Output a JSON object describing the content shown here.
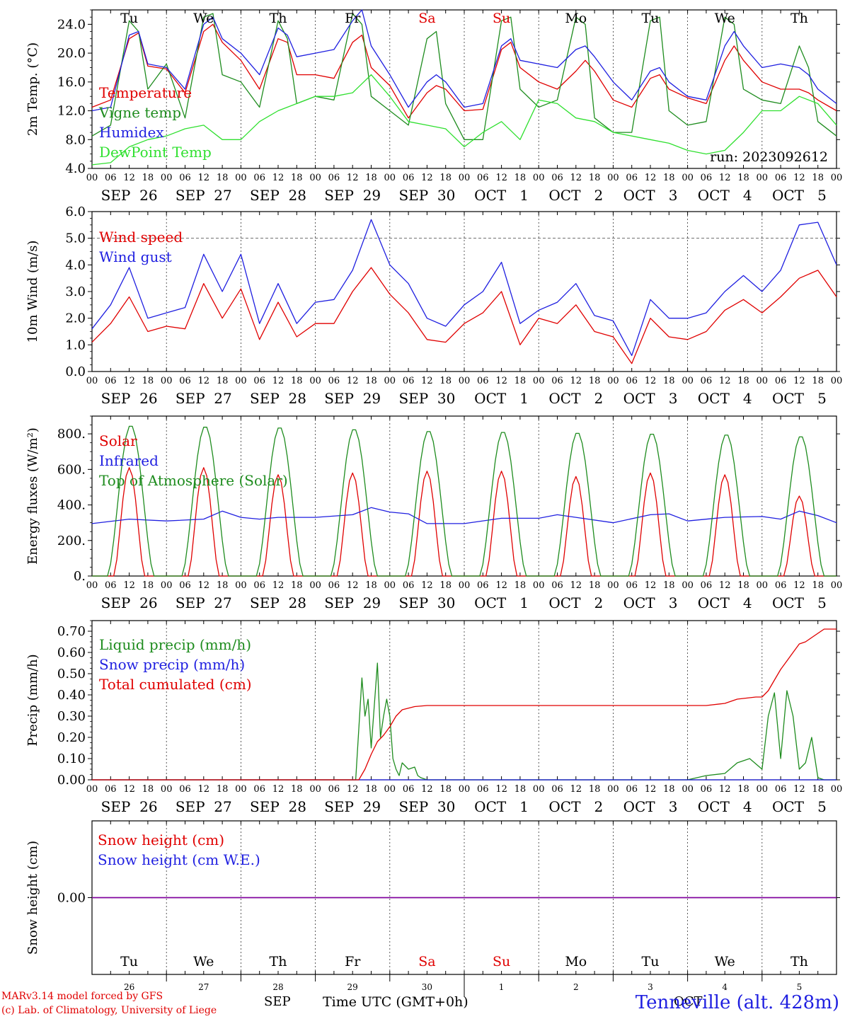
{
  "colors": {
    "red": "#e00000",
    "green": "#1e8c1e",
    "blue": "#1f1fe0",
    "lightgreen": "#30e030",
    "purple": "#8000a0",
    "axis": "#000000"
  },
  "hour_ticks": [
    "00",
    "06",
    "12",
    "18"
  ],
  "hour_end": "00",
  "dates": [
    "SEP  26",
    "SEP  27",
    "SEP  28",
    "SEP  29",
    "SEP  30",
    "OCT   1",
    "OCT   2",
    "OCT   3",
    "OCT   4",
    "OCT   5"
  ],
  "weekdays": [
    {
      "label": "Tu",
      "weekend": false
    },
    {
      "label": "We",
      "weekend": false
    },
    {
      "label": "Th",
      "weekend": false
    },
    {
      "label": "Fr",
      "weekend": false
    },
    {
      "label": "Sa",
      "weekend": true
    },
    {
      "label": "Su",
      "weekend": true
    },
    {
      "label": "Mo",
      "weekend": false
    },
    {
      "label": "Tu",
      "weekend": false
    },
    {
      "label": "We",
      "weekend": false
    },
    {
      "label": "Th",
      "weekend": false
    }
  ],
  "day_numbers": [
    "26",
    "27",
    "28",
    "29",
    "30",
    "1",
    "2",
    "3",
    "4",
    "5"
  ],
  "footer": {
    "credit_line1": "MARv3.14 model forced by GFS",
    "credit_line2": "(c) Lab. of Climatology, University of Liege",
    "month_left": "SEP",
    "month_right": "OCT",
    "xaxis_title": "Time UTC (GMT+0h)",
    "station": "Tenneville (alt. 428m)"
  },
  "chart_data": [
    {
      "type": "line",
      "ylabel": "2m Temp. (°C)",
      "ylim": [
        4,
        26
      ],
      "yticks": [
        "4.0",
        "8.0",
        "12.0",
        "16.0",
        "20.0",
        "24.0"
      ],
      "ytick_values": [
        4,
        8,
        12,
        16,
        20,
        24
      ],
      "annotation": "run: 2023092612",
      "x_unit": "hours since SEP 26 00 UTC",
      "series": [
        {
          "name": "Temperature",
          "color": "red",
          "x": [
            0,
            6,
            12,
            15,
            18,
            24,
            30,
            36,
            39,
            42,
            48,
            54,
            60,
            63,
            66,
            72,
            78,
            84,
            87,
            90,
            96,
            102,
            108,
            111,
            114,
            120,
            126,
            132,
            135,
            138,
            144,
            150,
            156,
            159,
            162,
            168,
            174,
            180,
            183,
            186,
            192,
            198,
            204,
            207,
            210,
            216,
            222,
            228,
            231,
            234,
            240
          ],
          "y": [
            12.5,
            13.5,
            22.0,
            22.8,
            18.2,
            17.8,
            14.5,
            23.0,
            24.0,
            21.5,
            19.0,
            15.0,
            22.0,
            21.5,
            17.0,
            17.0,
            16.5,
            21.5,
            22.5,
            18.0,
            15.5,
            11.0,
            14.5,
            15.5,
            15.0,
            12.0,
            12.2,
            20.5,
            21.5,
            18.0,
            16.0,
            15.0,
            17.5,
            19.0,
            17.5,
            13.5,
            12.5,
            16.5,
            17.0,
            15.0,
            13.8,
            13.0,
            19.0,
            21.0,
            19.0,
            16.0,
            15.0,
            15.0,
            14.5,
            13.5,
            12.0
          ]
        },
        {
          "name": "Vigne temp",
          "color": "green",
          "x": [
            0,
            6,
            12,
            15,
            18,
            24,
            30,
            36,
            39,
            42,
            48,
            54,
            60,
            63,
            66,
            72,
            78,
            84,
            87,
            90,
            96,
            102,
            108,
            111,
            114,
            120,
            126,
            132,
            135,
            138,
            144,
            150,
            156,
            159,
            162,
            168,
            174,
            180,
            183,
            186,
            192,
            198,
            204,
            207,
            210,
            216,
            222,
            228,
            231,
            234,
            240
          ],
          "y": [
            8.5,
            10.0,
            24.5,
            23.0,
            15.0,
            18.5,
            11.0,
            25.0,
            25.5,
            17.0,
            16.0,
            12.5,
            24.5,
            22.0,
            13.0,
            14.0,
            13.5,
            25.5,
            24.0,
            14.0,
            12.0,
            10.0,
            22.0,
            23.0,
            13.0,
            8.0,
            8.0,
            24.5,
            25.0,
            15.0,
            12.5,
            13.5,
            25.0,
            24.0,
            11.0,
            9.0,
            9.0,
            24.5,
            25.0,
            12.0,
            10.0,
            10.5,
            25.0,
            24.0,
            15.0,
            13.5,
            13.0,
            21.0,
            18.0,
            10.5,
            8.5
          ]
        },
        {
          "name": "Humidex",
          "color": "blue",
          "x": [
            0,
            6,
            12,
            15,
            18,
            24,
            30,
            36,
            39,
            42,
            48,
            54,
            60,
            63,
            66,
            72,
            78,
            84,
            87,
            90,
            96,
            102,
            108,
            111,
            114,
            120,
            126,
            132,
            135,
            138,
            144,
            150,
            156,
            159,
            162,
            168,
            174,
            180,
            183,
            186,
            192,
            198,
            204,
            207,
            210,
            216,
            222,
            228,
            231,
            234,
            240
          ],
          "y": [
            12.0,
            12.5,
            22.5,
            23.0,
            18.5,
            18.0,
            15.0,
            24.0,
            25.0,
            22.0,
            20.0,
            17.0,
            23.5,
            22.5,
            19.5,
            20.0,
            20.5,
            24.5,
            26.0,
            21.0,
            17.0,
            12.5,
            16.0,
            17.0,
            16.0,
            12.5,
            13.0,
            21.0,
            22.0,
            19.0,
            18.5,
            18.0,
            20.5,
            21.0,
            19.5,
            16.0,
            13.5,
            17.5,
            18.0,
            16.0,
            14.0,
            13.5,
            21.0,
            23.0,
            21.0,
            18.0,
            18.5,
            18.0,
            17.0,
            15.0,
            13.0
          ]
        },
        {
          "name": "DewPoint Temp",
          "color": "lightgreen",
          "x": [
            0,
            6,
            12,
            18,
            24,
            30,
            36,
            42,
            48,
            54,
            60,
            66,
            72,
            78,
            84,
            90,
            96,
            102,
            108,
            114,
            120,
            126,
            132,
            138,
            144,
            150,
            156,
            162,
            168,
            174,
            180,
            186,
            192,
            198,
            204,
            210,
            216,
            222,
            228,
            234,
            240
          ],
          "y": [
            4.5,
            4.8,
            7.0,
            8.0,
            8.5,
            9.5,
            10.0,
            8.0,
            8.0,
            10.5,
            12.0,
            13.0,
            14.0,
            14.0,
            14.5,
            17.0,
            14.0,
            10.5,
            10.0,
            9.5,
            7.0,
            9.0,
            10.5,
            8.0,
            13.5,
            13.0,
            11.0,
            10.5,
            9.0,
            8.5,
            8.0,
            7.5,
            6.5,
            6.0,
            6.5,
            9.0,
            12.0,
            12.0,
            14.0,
            13.0,
            10.0
          ]
        }
      ]
    },
    {
      "type": "line",
      "ylabel": "10m Wind (m/s)",
      "ylim": [
        0,
        6
      ],
      "yticks": [
        "0.0",
        "1.0",
        "2.0",
        "3.0",
        "4.0",
        "5.0",
        "6.0"
      ],
      "ytick_values": [
        0,
        1,
        2,
        3,
        4,
        5,
        6
      ],
      "reference_line": 5.0,
      "series": [
        {
          "name": "Wind speed",
          "color": "red",
          "x": [
            0,
            6,
            12,
            18,
            24,
            30,
            36,
            42,
            48,
            54,
            60,
            66,
            72,
            78,
            84,
            90,
            96,
            102,
            108,
            114,
            120,
            126,
            132,
            138,
            144,
            150,
            156,
            162,
            168,
            174,
            180,
            186,
            192,
            198,
            204,
            210,
            216,
            222,
            228,
            234,
            240
          ],
          "y": [
            1.1,
            1.8,
            2.8,
            1.5,
            1.7,
            1.6,
            3.3,
            2.0,
            3.1,
            1.2,
            2.6,
            1.3,
            1.8,
            1.8,
            3.0,
            3.9,
            2.9,
            2.2,
            1.2,
            1.1,
            1.8,
            2.2,
            3.0,
            1.0,
            2.0,
            1.8,
            2.5,
            1.5,
            1.3,
            0.3,
            2.0,
            1.3,
            1.2,
            1.5,
            2.3,
            2.7,
            2.2,
            2.8,
            3.5,
            3.8,
            2.8
          ]
        },
        {
          "name": "Wind gust",
          "color": "blue",
          "x": [
            0,
            6,
            12,
            18,
            24,
            30,
            36,
            42,
            48,
            54,
            60,
            66,
            72,
            78,
            84,
            90,
            96,
            102,
            108,
            114,
            120,
            126,
            132,
            138,
            144,
            150,
            156,
            162,
            168,
            174,
            180,
            186,
            192,
            198,
            204,
            210,
            216,
            222,
            228,
            234,
            240
          ],
          "y": [
            1.6,
            2.5,
            3.9,
            2.0,
            2.2,
            2.4,
            4.4,
            3.0,
            4.4,
            1.8,
            3.3,
            1.8,
            2.6,
            2.7,
            3.8,
            5.7,
            4.0,
            3.3,
            2.0,
            1.7,
            2.5,
            3.0,
            4.1,
            1.8,
            2.3,
            2.6,
            3.3,
            2.1,
            1.9,
            0.6,
            2.7,
            2.0,
            2.0,
            2.2,
            3.0,
            3.6,
            3.0,
            3.8,
            5.5,
            5.6,
            4.0
          ]
        }
      ]
    },
    {
      "type": "line",
      "ylabel": "Energy fluxes (W/m²)",
      "ylim": [
        0,
        900
      ],
      "yticks": [
        "0.",
        "200.",
        "400.",
        "600.",
        "800."
      ],
      "ytick_values": [
        0,
        200,
        400,
        600,
        800
      ],
      "series": [
        {
          "name": "Solar",
          "color": "red",
          "daily_peaks": [
            610,
            610,
            570,
            580,
            590,
            590,
            560,
            580,
            570,
            450
          ]
        },
        {
          "name": "Infrared",
          "color": "blue",
          "x": [
            0,
            12,
            24,
            36,
            42,
            48,
            54,
            60,
            72,
            84,
            90,
            96,
            102,
            108,
            120,
            132,
            144,
            150,
            156,
            168,
            180,
            186,
            192,
            204,
            216,
            222,
            228,
            234,
            240
          ],
          "y": [
            295,
            320,
            310,
            320,
            365,
            330,
            320,
            330,
            330,
            345,
            385,
            360,
            350,
            295,
            295,
            325,
            325,
            345,
            330,
            300,
            345,
            350,
            310,
            330,
            335,
            320,
            365,
            340,
            300
          ]
        },
        {
          "name": "Top of Atmosphere (Solar)",
          "color": "green",
          "daily_peaks": [
            850,
            845,
            840,
            830,
            820,
            815,
            810,
            805,
            800,
            790
          ]
        }
      ]
    },
    {
      "type": "line",
      "ylabel": "Precip (mm/h)",
      "ylim": [
        0,
        0.75
      ],
      "yticks": [
        "0.00",
        "0.10",
        "0.20",
        "0.30",
        "0.40",
        "0.50",
        "0.60",
        "0.70"
      ],
      "ytick_values": [
        0,
        0.1,
        0.2,
        0.3,
        0.4,
        0.5,
        0.6,
        0.7
      ],
      "series": [
        {
          "name": "Liquid precip (mm/h)",
          "color": "green",
          "x": [
            0,
            85,
            87,
            88,
            89,
            90,
            91,
            92,
            93,
            94,
            95,
            96,
            97,
            98,
            99,
            100,
            102,
            104,
            105,
            106,
            108,
            110,
            192,
            198,
            204,
            208,
            212,
            216,
            218,
            220,
            222,
            224,
            226,
            228,
            230,
            232,
            234,
            236,
            240
          ],
          "y": [
            0,
            0,
            0.48,
            0.3,
            0.38,
            0.15,
            0.35,
            0.55,
            0.2,
            0.3,
            0.38,
            0.3,
            0.1,
            0.05,
            0.02,
            0.08,
            0.05,
            0.06,
            0.02,
            0.01,
            0,
            0,
            0,
            0.02,
            0.03,
            0.08,
            0.1,
            0.05,
            0.3,
            0.41,
            0.1,
            0.42,
            0.3,
            0.05,
            0.08,
            0.2,
            0.01,
            0,
            0
          ]
        },
        {
          "name": "Snow precip (mm/h)",
          "color": "blue",
          "x": [
            0,
            240
          ],
          "y": [
            0,
            0
          ]
        },
        {
          "name": "Total cumulated (cm)",
          "color": "red",
          "x": [
            0,
            86,
            88,
            90,
            92,
            94,
            96,
            98,
            100,
            104,
            108,
            120,
            192,
            198,
            204,
            208,
            214,
            216,
            218,
            220,
            222,
            224,
            226,
            228,
            230,
            232,
            236,
            240
          ],
          "y": [
            0,
            0,
            0.05,
            0.12,
            0.18,
            0.21,
            0.25,
            0.3,
            0.33,
            0.345,
            0.35,
            0.35,
            0.35,
            0.35,
            0.36,
            0.38,
            0.39,
            0.39,
            0.42,
            0.47,
            0.52,
            0.56,
            0.6,
            0.64,
            0.65,
            0.67,
            0.71,
            0.71
          ]
        }
      ]
    },
    {
      "type": "line",
      "ylabel": "Snow height (cm)",
      "ylim": [
        -1,
        1
      ],
      "yticks": [
        "0.00"
      ],
      "ytick_values": [
        0
      ],
      "series": [
        {
          "name": "Snow height (cm)",
          "color": "red",
          "x": [
            0,
            240
          ],
          "y": [
            0,
            0
          ]
        },
        {
          "name": "Snow height (cm W.E.)",
          "color": "blue",
          "x": [
            0,
            240
          ],
          "y": [
            0,
            0
          ]
        }
      ]
    }
  ]
}
